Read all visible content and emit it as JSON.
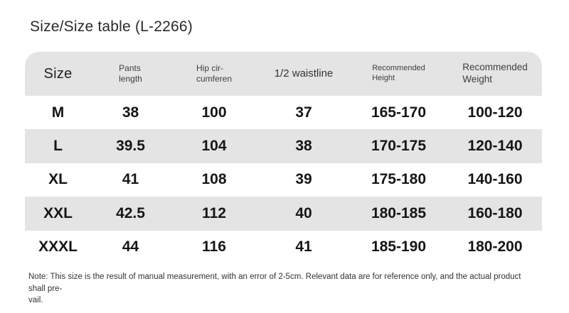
{
  "title": "Size/Size table (L-2266)",
  "colors": {
    "stripe": "#e4e4e4",
    "data_text": "#161616",
    "header_text": "#3e3e3e"
  },
  "table": {
    "columns": [
      {
        "label": "Size"
      },
      {
        "label": "Pants\nlength"
      },
      {
        "label": "Hip cir-\ncumferen"
      },
      {
        "label": "1/2 waistline"
      },
      {
        "label": "Recommended\nHeight"
      },
      {
        "label": "Recommended\nWeight"
      }
    ],
    "rows": [
      {
        "size": "M",
        "pants_length": "38",
        "hip_circumference": "100",
        "half_waistline": "37",
        "recommended_height": "165-170",
        "recommended_weight": "100-120"
      },
      {
        "size": "L",
        "pants_length": "39.5",
        "hip_circumference": "104",
        "half_waistline": "38",
        "recommended_height": "170-175",
        "recommended_weight": "120-140"
      },
      {
        "size": "XL",
        "pants_length": "41",
        "hip_circumference": "108",
        "half_waistline": "39",
        "recommended_height": "175-180",
        "recommended_weight": "140-160"
      },
      {
        "size": "XXL",
        "pants_length": "42.5",
        "hip_circumference": "112",
        "half_waistline": "40",
        "recommended_height": "180-185",
        "recommended_weight": "160-180"
      },
      {
        "size": "XXXL",
        "pants_length": "44",
        "hip_circumference": "116",
        "half_waistline": "41",
        "recommended_height": "185-190",
        "recommended_weight": "180-200"
      }
    ]
  },
  "note": "Note: This size is the result of manual measurement, with an error of 2-5cm. Relevant data are for reference only, and the actual product shall pre-\nvail."
}
